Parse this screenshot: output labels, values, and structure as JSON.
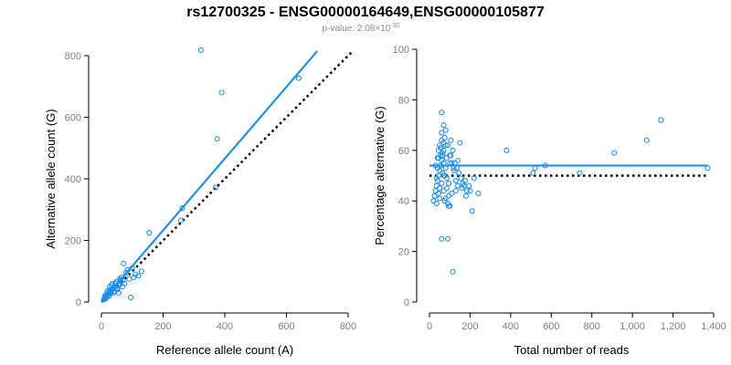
{
  "figure": {
    "title": "rs12700325 - ENSG00000164649,ENSG00000105877",
    "subtitle_prefix": "p-value: 2.08×10",
    "subtitle_exponent": "-30"
  },
  "colors": {
    "points": "#1f8fe8",
    "fit_line": "#1f8fe8",
    "reference_line": "#000000",
    "axis_text": "#7f7f7f"
  },
  "chart_data": [
    {
      "type": "scatter",
      "xlabel": "Reference allele count (A)",
      "ylabel": "Alternative allele count (G)",
      "xlim": [
        0,
        800
      ],
      "ylim": [
        0,
        800
      ],
      "x_ticks": [
        0,
        200,
        400,
        600,
        800
      ],
      "y_ticks": [
        0,
        200,
        400,
        600,
        800
      ],
      "x_tick_labels": [
        "0",
        "200",
        "400",
        "600",
        "800"
      ],
      "y_tick_labels": [
        "0",
        "200",
        "400",
        "600",
        "800"
      ],
      "grid": false,
      "fit_line": {
        "x": [
          0,
          700
        ],
        "y": [
          0,
          815
        ],
        "style": "solid"
      },
      "reference_line": {
        "x": [
          0,
          810
        ],
        "y": [
          0,
          810
        ],
        "style": "dotted"
      },
      "points": {
        "x": [
          322,
          640,
          390,
          375,
          370,
          262,
          155,
          258,
          130,
          95,
          100,
          120,
          80,
          70,
          60,
          55,
          50,
          45,
          40,
          35,
          30,
          25,
          20,
          18,
          15,
          12,
          10,
          8,
          65,
          75,
          85,
          42,
          38,
          33,
          28,
          22,
          17,
          14,
          48,
          52,
          58,
          62,
          68,
          72,
          26,
          31,
          36,
          44,
          90,
          110,
          105,
          56,
          46,
          24,
          19,
          13,
          11,
          27,
          34,
          41
        ],
        "y": [
          818,
          727,
          680,
          530,
          372,
          305,
          225,
          265,
          100,
          15,
          110,
          85,
          95,
          70,
          75,
          55,
          45,
          60,
          35,
          40,
          30,
          20,
          25,
          15,
          20,
          10,
          12,
          8,
          80,
          60,
          105,
          50,
          45,
          55,
          40,
          30,
          22,
          18,
          65,
          40,
          55,
          70,
          50,
          125,
          35,
          30,
          60,
          45,
          75,
          90,
          80,
          30,
          60,
          25,
          35,
          15,
          20,
          50,
          40,
          30
        ]
      }
    },
    {
      "type": "scatter",
      "xlabel": "Total number of reads",
      "ylabel": "Percentage alternative (G)",
      "xlim": [
        0,
        1400
      ],
      "ylim": [
        0,
        100
      ],
      "x_ticks": [
        0,
        200,
        400,
        600,
        800,
        1000,
        1200,
        1400
      ],
      "y_ticks": [
        0,
        20,
        40,
        60,
        80,
        100
      ],
      "x_tick_labels": [
        "0",
        "200",
        "400",
        "600",
        "800",
        "1,000",
        "1,200",
        "1,400"
      ],
      "y_tick_labels": [
        "0",
        "20",
        "40",
        "60",
        "80",
        "100"
      ],
      "grid": false,
      "fit_line": {
        "x": [
          0,
          1370
        ],
        "y": [
          54,
          54
        ],
        "style": "solid"
      },
      "reference_line": {
        "x": [
          0,
          1370
        ],
        "y": [
          50,
          50
        ],
        "style": "dotted"
      },
      "points": {
        "x": [
          1370,
          1140,
          1070,
          910,
          740,
          570,
          520,
          510,
          380,
          240,
          210,
          220,
          200,
          170,
          160,
          150,
          180,
          130,
          115,
          90,
          105,
          95,
          140,
          120,
          100,
          85,
          80,
          75,
          70,
          65,
          60,
          55,
          50,
          45,
          40,
          35,
          30,
          25,
          20,
          60,
          70,
          80,
          90,
          100,
          110,
          120,
          130,
          140,
          55,
          45,
          65,
          75,
          85,
          95,
          50,
          40,
          35,
          60,
          70,
          80,
          90,
          100,
          110,
          50,
          60,
          70,
          80,
          45,
          55,
          65,
          40,
          30,
          35,
          45,
          50,
          60,
          70,
          75,
          85,
          95,
          105,
          115,
          125,
          135,
          145,
          155,
          165,
          175,
          185,
          195,
          60,
          70
        ],
        "y": [
          53,
          72,
          64,
          59,
          51,
          54,
          53,
          51,
          60,
          43,
          36,
          49,
          44,
          46,
          45,
          63,
          42,
          44,
          12,
          25,
          64,
          38,
          56,
          53,
          55,
          57,
          62,
          65,
          60,
          58,
          56,
          54,
          52,
          50,
          48,
          46,
          44,
          42,
          40,
          75,
          70,
          68,
          62,
          58,
          55,
          52,
          48,
          46,
          61,
          57,
          59,
          50,
          49,
          47,
          45,
          53,
          39,
          67,
          44,
          41,
          39,
          38,
          43,
          62,
          64,
          55,
          53,
          60,
          58,
          51,
          57,
          54,
          49,
          43,
          41,
          47,
          50,
          40,
          45,
          42,
          58,
          60,
          55,
          53,
          51,
          49,
          47,
          48,
          44,
          46,
          25,
          63
        ]
      }
    }
  ]
}
